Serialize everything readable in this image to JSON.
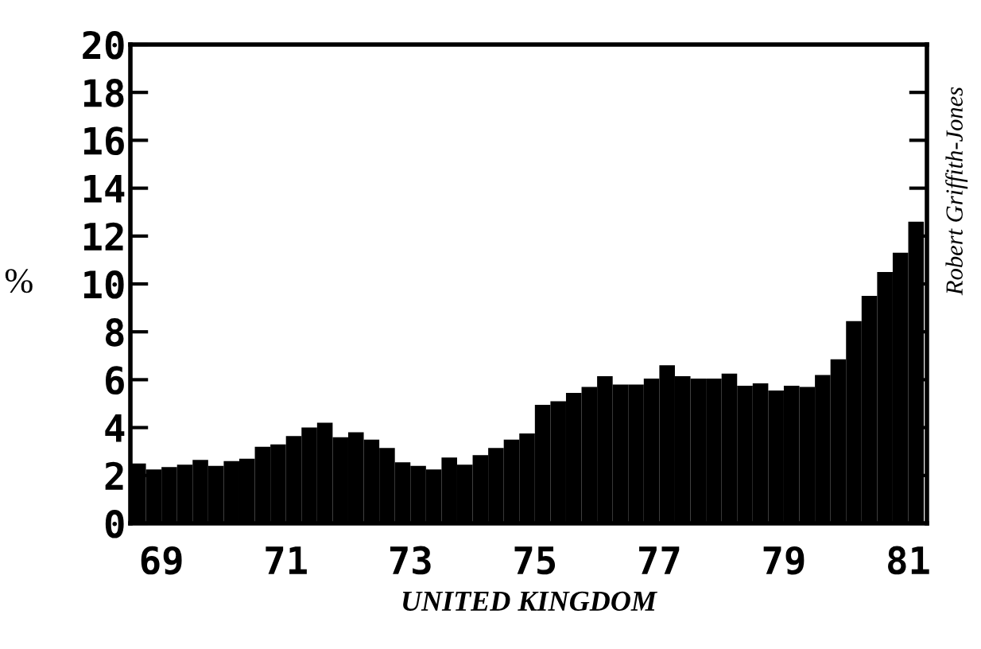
{
  "chart_data": {
    "type": "bar",
    "xlabel": "UNITED KINGDOM",
    "ylabel": "%",
    "annotations": [
      "Robert Griffith-Jones"
    ],
    "x": [
      1968.625,
      1968.875,
      1969.125,
      1969.375,
      1969.625,
      1969.875,
      1970.125,
      1970.375,
      1970.625,
      1970.875,
      1971.125,
      1971.375,
      1971.625,
      1971.875,
      1972.125,
      1972.375,
      1972.625,
      1972.875,
      1973.125,
      1973.375,
      1973.625,
      1973.875,
      1974.125,
      1974.375,
      1974.625,
      1974.875,
      1975.125,
      1975.375,
      1975.625,
      1975.875,
      1976.125,
      1976.375,
      1976.625,
      1976.875,
      1977.125,
      1977.375,
      1977.625,
      1977.875,
      1978.125,
      1978.375,
      1978.625,
      1978.875,
      1979.125,
      1979.375,
      1979.625,
      1979.875,
      1980.125,
      1980.375,
      1980.625,
      1980.875,
      1981.125
    ],
    "series": [
      {
        "color": "#000000",
        "values": [
          2.5,
          2.25,
          2.35,
          2.45,
          2.65,
          2.4,
          2.6,
          2.7,
          3.2,
          3.3,
          3.65,
          4.0,
          4.2,
          3.6,
          3.8,
          3.5,
          3.15,
          2.55,
          2.4,
          2.25,
          2.75,
          2.45,
          2.85,
          3.15,
          3.5,
          3.75,
          4.95,
          5.1,
          5.45,
          5.7,
          6.15,
          5.8,
          5.8,
          6.05,
          6.6,
          6.15,
          6.05,
          6.05,
          6.25,
          5.75,
          5.85,
          5.55,
          5.75,
          5.7,
          6.2,
          6.85,
          8.45,
          9.5,
          10.5,
          11.3,
          12.6
        ]
      }
    ],
    "xlim": [
      1968.5,
      1981.3
    ],
    "xticks": [
      {
        "value": 1969,
        "label": "69"
      },
      {
        "value": 1971,
        "label": "71"
      },
      {
        "value": 1973,
        "label": "73"
      },
      {
        "value": 1975,
        "label": "75"
      },
      {
        "value": 1977,
        "label": "77"
      },
      {
        "value": 1979,
        "label": "79"
      },
      {
        "value": 1981,
        "label": "81"
      }
    ],
    "ylim": [
      0,
      20
    ],
    "yticks": [
      0,
      2,
      4,
      6,
      8,
      10,
      12,
      14,
      16,
      18,
      20
    ],
    "grid": false,
    "legend": false
  }
}
